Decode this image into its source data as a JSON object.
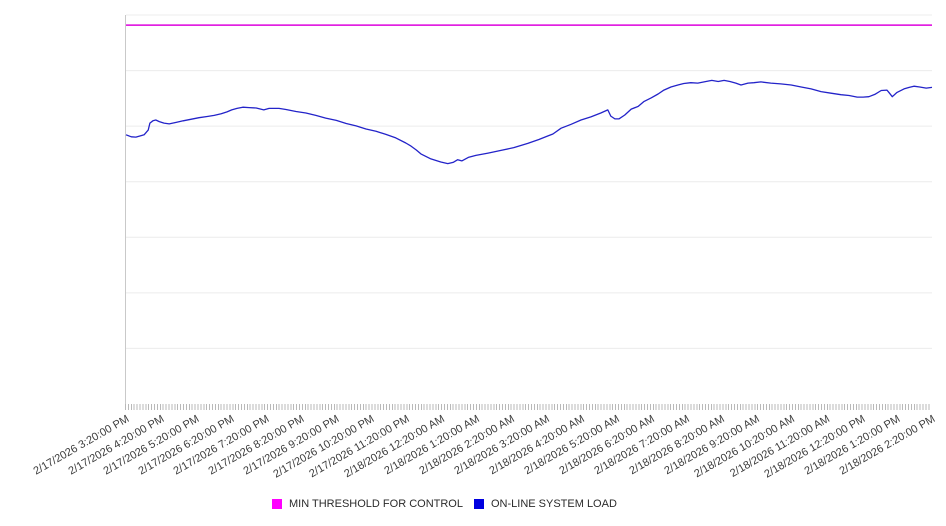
{
  "page": {
    "background": "#ffffff"
  },
  "colors": {
    "axis_line": "#c9c9c9",
    "gridline": "#ececec",
    "tick": "#b9b9b9",
    "x_label_text": "#3c3c3c",
    "legend_text": "#2b2b2b"
  },
  "chart_data": {
    "type": "line",
    "title": "",
    "xlabel": "",
    "ylabel": "",
    "grid": true,
    "grid_divisions": 7,
    "legend_position": "bottom",
    "xlim": [
      0,
      1380
    ],
    "ylim": [
      0,
      100
    ],
    "x_unit_minutes_from_first_label": true,
    "categories": [
      "2/17/2026 3:20:00 PM",
      "2/17/2026 4:20:00 PM",
      "2/17/2026 5:20:00 PM",
      "2/17/2026 6:20:00 PM",
      "2/17/2026 7:20:00 PM",
      "2/17/2026 8:20:00 PM",
      "2/17/2026 9:20:00 PM",
      "2/17/2026 10:20:00 PM",
      "2/17/2026 11:20:00 PM",
      "2/18/2026 12:20:00 AM",
      "2/18/2026 1:20:00 AM",
      "2/18/2026 2:20:00 AM",
      "2/18/2026 3:20:00 AM",
      "2/18/2026 4:20:00 AM",
      "2/18/2026 5:20:00 AM",
      "2/18/2026 6:20:00 AM",
      "2/18/2026 7:20:00 AM",
      "2/18/2026 8:20:00 AM",
      "2/18/2026 9:20:00 AM",
      "2/18/2026 10:20:00 AM",
      "2/18/2026 11:20:00 AM",
      "2/18/2026 12:20:00 PM",
      "2/18/2026 1:20:00 PM",
      "2/18/2026 2:20:00 PM"
    ],
    "series": [
      {
        "name": "MIN THRESHOLD FOR CONTROL",
        "color": "#dd00dd",
        "swatch_color": "#ff00ff",
        "stroke_width": 1.5,
        "points": [
          [
            0,
            97.4
          ],
          [
            1380,
            97.4
          ]
        ]
      },
      {
        "name": "ON-LINE SYSTEM LOAD",
        "color": "#2323c9",
        "swatch_color": "#0000e0",
        "stroke_width": 1.3,
        "points": [
          [
            0,
            69.2
          ],
          [
            9,
            68.7
          ],
          [
            17,
            68.6
          ],
          [
            26,
            69.0
          ],
          [
            31,
            69.2
          ],
          [
            38,
            70.4
          ],
          [
            41,
            72.2
          ],
          [
            46,
            72.8
          ],
          [
            51,
            73.0
          ],
          [
            57,
            72.6
          ],
          [
            65,
            72.2
          ],
          [
            74,
            72.0
          ],
          [
            86,
            72.4
          ],
          [
            98,
            72.8
          ],
          [
            111,
            73.2
          ],
          [
            125,
            73.6
          ],
          [
            139,
            73.9
          ],
          [
            151,
            74.2
          ],
          [
            163,
            74.6
          ],
          [
            173,
            75.1
          ],
          [
            181,
            75.6
          ],
          [
            190,
            76.0
          ],
          [
            200,
            76.3
          ],
          [
            211,
            76.2
          ],
          [
            223,
            76.1
          ],
          [
            236,
            75.6
          ],
          [
            245,
            76.0
          ],
          [
            262,
            76.0
          ],
          [
            274,
            75.7
          ],
          [
            291,
            75.2
          ],
          [
            308,
            74.8
          ],
          [
            325,
            74.2
          ],
          [
            342,
            73.5
          ],
          [
            360,
            72.9
          ],
          [
            377,
            72.1
          ],
          [
            394,
            71.5
          ],
          [
            411,
            70.7
          ],
          [
            428,
            70.1
          ],
          [
            445,
            69.3
          ],
          [
            462,
            68.4
          ],
          [
            479,
            67.1
          ],
          [
            488,
            66.3
          ],
          [
            497,
            65.3
          ],
          [
            505,
            64.3
          ],
          [
            522,
            63.0
          ],
          [
            539,
            62.2
          ],
          [
            551,
            61.8
          ],
          [
            560,
            62.1
          ],
          [
            568,
            62.8
          ],
          [
            575,
            62.5
          ],
          [
            586,
            63.4
          ],
          [
            599,
            63.9
          ],
          [
            620,
            64.5
          ],
          [
            642,
            65.2
          ],
          [
            664,
            65.9
          ],
          [
            688,
            67.0
          ],
          [
            707,
            68.0
          ],
          [
            722,
            68.9
          ],
          [
            731,
            69.4
          ],
          [
            745,
            70.9
          ],
          [
            762,
            71.9
          ],
          [
            779,
            73.0
          ],
          [
            796,
            73.8
          ],
          [
            813,
            74.8
          ],
          [
            825,
            75.6
          ],
          [
            830,
            74.0
          ],
          [
            837,
            73.3
          ],
          [
            844,
            73.3
          ],
          [
            854,
            74.3
          ],
          [
            865,
            75.8
          ],
          [
            877,
            76.5
          ],
          [
            887,
            77.8
          ],
          [
            899,
            78.7
          ],
          [
            911,
            79.7
          ],
          [
            921,
            80.7
          ],
          [
            933,
            81.5
          ],
          [
            945,
            82.0
          ],
          [
            955,
            82.4
          ],
          [
            967,
            82.6
          ],
          [
            979,
            82.5
          ],
          [
            993,
            82.9
          ],
          [
            1003,
            83.2
          ],
          [
            1014,
            82.9
          ],
          [
            1024,
            83.2
          ],
          [
            1034,
            82.9
          ],
          [
            1044,
            82.5
          ],
          [
            1053,
            82.0
          ],
          [
            1065,
            82.5
          ],
          [
            1075,
            82.6
          ],
          [
            1087,
            82.8
          ],
          [
            1104,
            82.5
          ],
          [
            1121,
            82.3
          ],
          [
            1139,
            82.0
          ],
          [
            1156,
            81.5
          ],
          [
            1173,
            81.0
          ],
          [
            1190,
            80.3
          ],
          [
            1207,
            79.9
          ],
          [
            1224,
            79.5
          ],
          [
            1238,
            79.3
          ],
          [
            1252,
            78.9
          ],
          [
            1262,
            78.9
          ],
          [
            1272,
            79.0
          ],
          [
            1282,
            79.6
          ],
          [
            1293,
            80.6
          ],
          [
            1303,
            80.7
          ],
          [
            1312,
            79.0
          ],
          [
            1320,
            80.1
          ],
          [
            1332,
            81.0
          ],
          [
            1341,
            81.4
          ],
          [
            1349,
            81.7
          ],
          [
            1359,
            81.5
          ],
          [
            1370,
            81.2
          ],
          [
            1380,
            81.4
          ]
        ]
      }
    ]
  }
}
